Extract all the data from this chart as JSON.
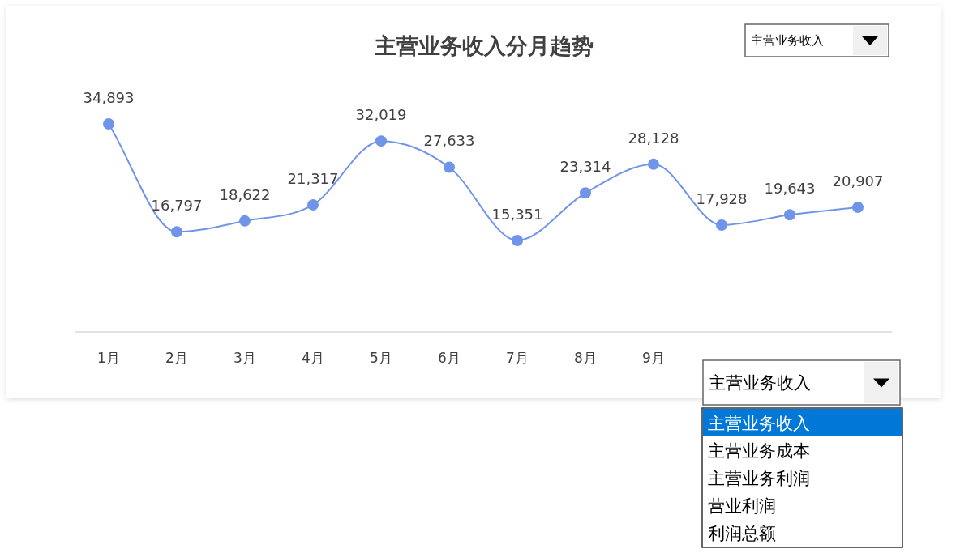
{
  "chart_data": {
    "type": "line",
    "title": "主营业务收入分月趋势",
    "categories": [
      "1月",
      "2月",
      "3月",
      "4月",
      "5月",
      "6月",
      "7月",
      "8月",
      "9月",
      null,
      null,
      null
    ],
    "series": [
      {
        "color": "#7094e8",
        "values": [
          34893,
          16797,
          18622,
          21317,
          32019,
          27633,
          15351,
          23314,
          28128,
          17928,
          19643,
          20907
        ],
        "value_labels": [
          "34,893",
          "16,797",
          "18,622",
          "21,317",
          "32,019",
          "27,633",
          "15,351",
          "23,314",
          "28,128",
          "17,928",
          "19,643",
          "20,907"
        ]
      }
    ],
    "marker": "circle",
    "line_style": "solid",
    "annotations": [
      "主营业务收入",
      "主营业务收入",
      "主营业务收入",
      "主营业务成本",
      "主营业务利润",
      "营业利润",
      "利润总额"
    ]
  }
}
